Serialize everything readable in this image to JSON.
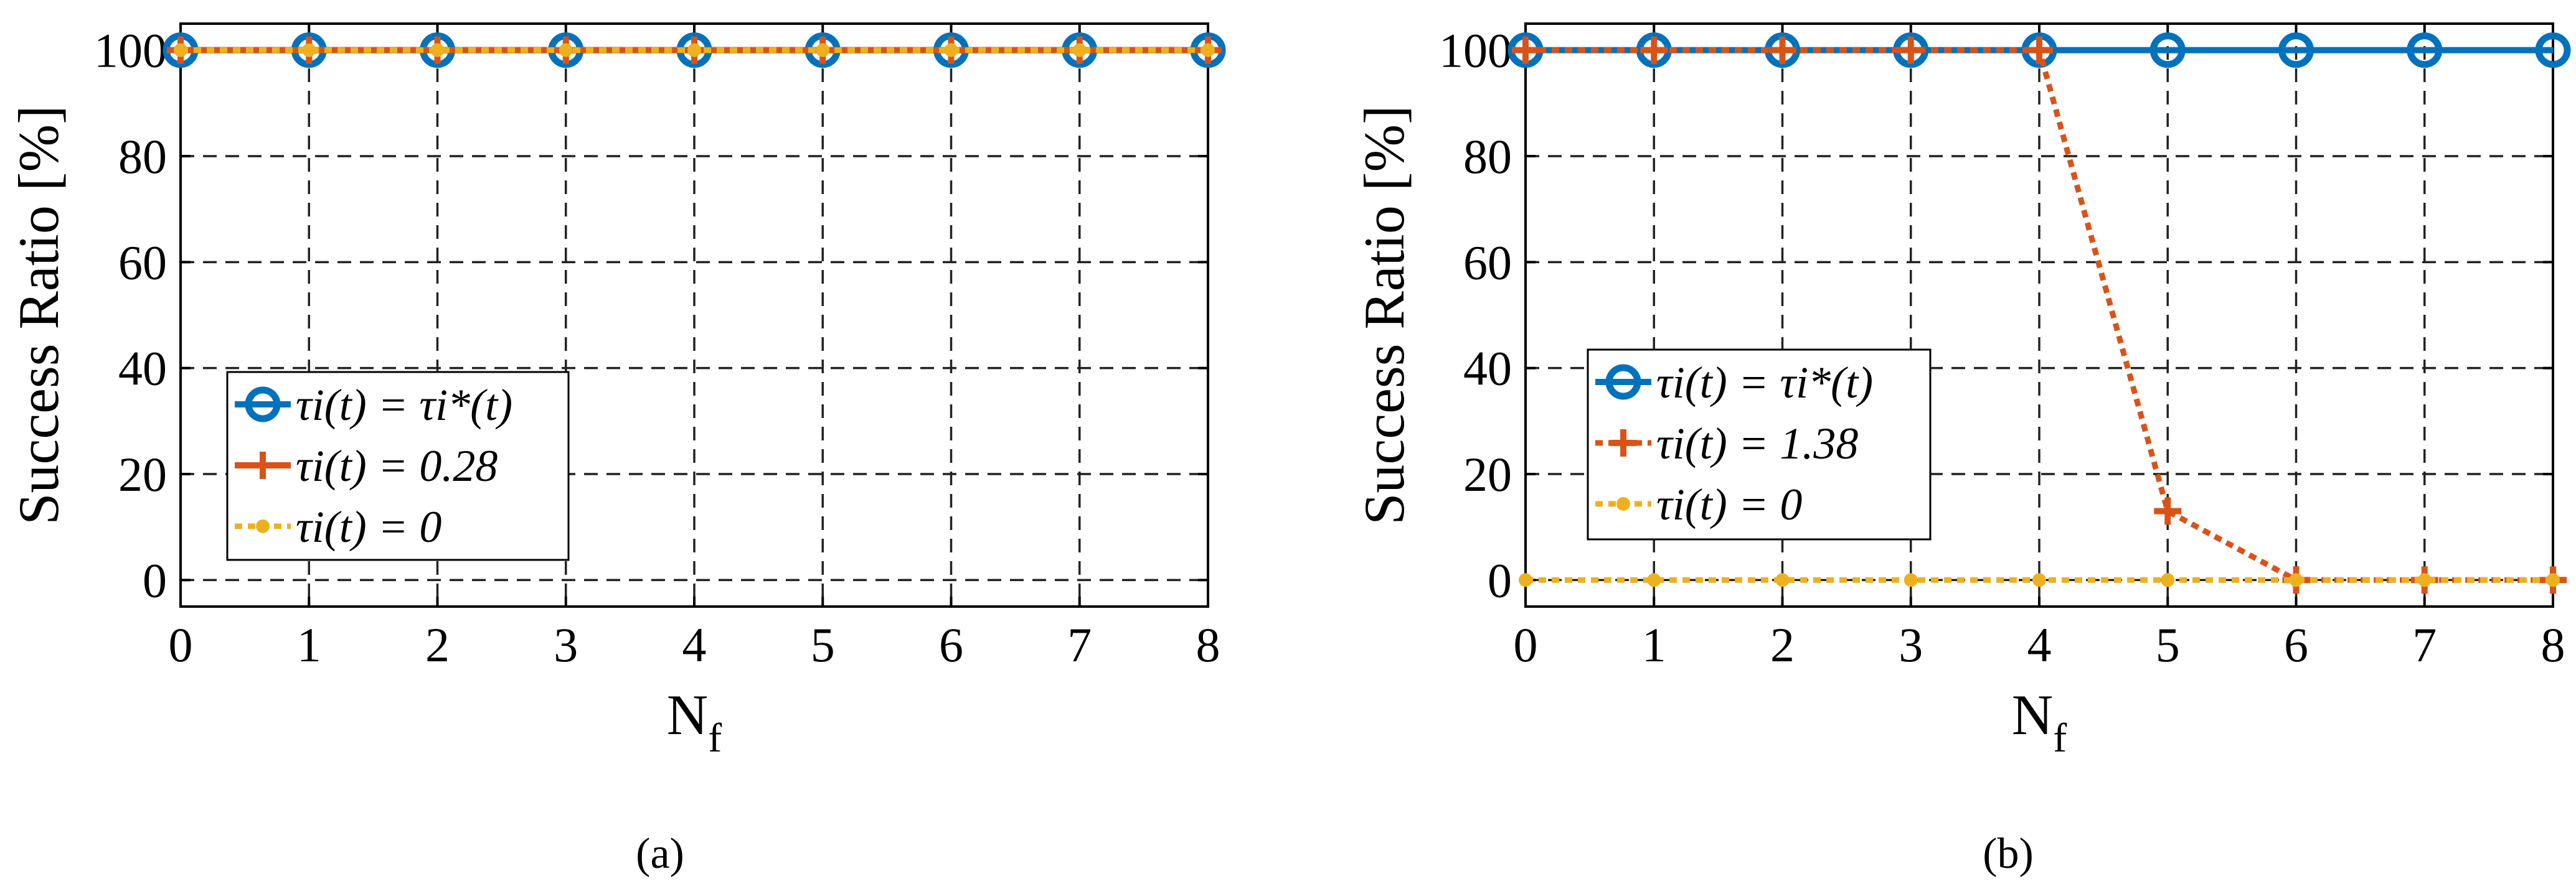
{
  "chart_data": [
    {
      "panel": "a",
      "caption": "(a)",
      "type": "line",
      "xlabel": "N",
      "xlabel_sub": "f",
      "ylabel": "Success Ratio [%]",
      "xlim": [
        0,
        8
      ],
      "ylim": [
        -5,
        105
      ],
      "xticks": [
        "0",
        "1",
        "2",
        "3",
        "4",
        "5",
        "6",
        "7",
        "8"
      ],
      "yticks": [
        "0",
        "20",
        "40",
        "60",
        "80",
        "100"
      ],
      "grid": true,
      "legend_position": "lower-left",
      "x": [
        0,
        1,
        2,
        3,
        4,
        5,
        6,
        7,
        8
      ],
      "series": [
        {
          "name": "τi(t) = τi*(t)",
          "color": "#0072BD",
          "marker": "circle",
          "line": "solid",
          "values": [
            100,
            100,
            100,
            100,
            100,
            100,
            100,
            100,
            100
          ]
        },
        {
          "name": "τi(t) = 0.28",
          "color": "#D95319",
          "marker": "plus",
          "line": "solid",
          "values": [
            100,
            100,
            100,
            100,
            100,
            100,
            100,
            100,
            100
          ]
        },
        {
          "name": "τi(t) = 0",
          "color": "#EDB120",
          "marker": "dot",
          "line": "dotted",
          "values": [
            100,
            100,
            100,
            100,
            100,
            100,
            100,
            100,
            100
          ]
        }
      ]
    },
    {
      "panel": "b",
      "caption": "(b)",
      "type": "line",
      "xlabel": "N",
      "xlabel_sub": "f",
      "ylabel": "Success Ratio [%]",
      "xlim": [
        0,
        8
      ],
      "ylim": [
        -5,
        105
      ],
      "xticks": [
        "0",
        "1",
        "2",
        "3",
        "4",
        "5",
        "6",
        "7",
        "8"
      ],
      "yticks": [
        "0",
        "20",
        "40",
        "60",
        "80",
        "100"
      ],
      "grid": true,
      "legend_position": "center-left",
      "x": [
        0,
        1,
        2,
        3,
        4,
        5,
        6,
        7,
        8
      ],
      "series": [
        {
          "name": "τi(t) = τi*(t)",
          "color": "#0072BD",
          "marker": "circle",
          "line": "solid",
          "values": [
            100,
            100,
            100,
            100,
            100,
            100,
            100,
            100,
            100
          ]
        },
        {
          "name": "τi(t) = 1.38",
          "color": "#D95319",
          "marker": "plus",
          "line": "dotted",
          "values": [
            100,
            100,
            100,
            100,
            100,
            13,
            0,
            0,
            0
          ]
        },
        {
          "name": "τi(t) = 0",
          "color": "#EDB120",
          "marker": "dot",
          "line": "dotted",
          "values": [
            0,
            0,
            0,
            0,
            0,
            0,
            0,
            0,
            0
          ]
        }
      ]
    }
  ]
}
